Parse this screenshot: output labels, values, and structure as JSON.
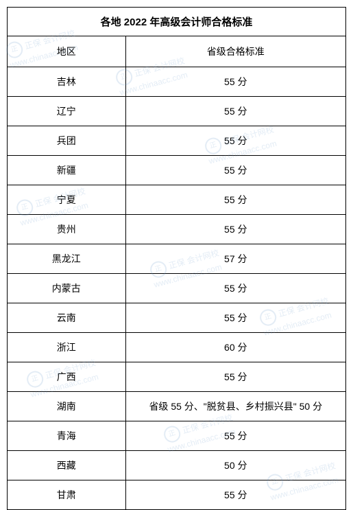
{
  "title": "各地 2022 年高级会计师合格标准",
  "headers": {
    "region": "地区",
    "standard": "省级合格标准"
  },
  "rows": [
    {
      "region": "吉林",
      "score": "55 分"
    },
    {
      "region": "辽宁",
      "score": "55 分"
    },
    {
      "region": "兵团",
      "score": "55 分"
    },
    {
      "region": "新疆",
      "score": "55 分"
    },
    {
      "region": "宁夏",
      "score": "55 分"
    },
    {
      "region": "贵州",
      "score": "55 分"
    },
    {
      "region": "黑龙江",
      "score": "57 分"
    },
    {
      "region": "内蒙古",
      "score": "55 分"
    },
    {
      "region": "云南",
      "score": "55 分"
    },
    {
      "region": "浙江",
      "score": "60 分"
    },
    {
      "region": "广西",
      "score": "55 分"
    },
    {
      "region": "湖南",
      "score": "省级 55 分、\"脱贫县、乡村振兴县\" 50 分"
    },
    {
      "region": "青海",
      "score": "55 分"
    },
    {
      "region": "西藏",
      "score": "50 分"
    },
    {
      "region": "甘肃",
      "score": "55 分"
    }
  ],
  "watermark": {
    "text1": "正保 会计网校",
    "text2": "www.chinaacc.com"
  },
  "styling": {
    "border_color": "#000000",
    "background_color": "#ffffff",
    "title_fontsize": 15,
    "cell_fontsize": 14,
    "left_col_width_pct": 35,
    "right_col_width_pct": 65,
    "watermark_color": "rgba(100, 150, 200, 0.18)"
  }
}
